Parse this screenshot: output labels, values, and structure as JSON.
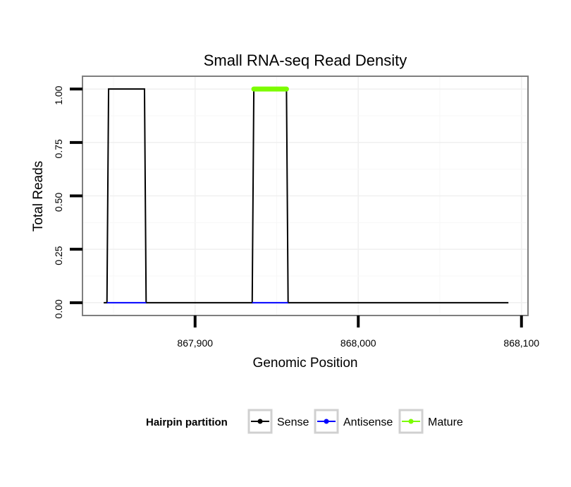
{
  "chart_data": {
    "type": "line",
    "title": "Small RNA-seq Read Density",
    "xlabel": "Genomic Position",
    "ylabel": "Total Reads",
    "xlim": [
      867831,
      868104
    ],
    "ylim": [
      -0.06,
      1.06
    ],
    "x_ticks": [
      {
        "value": 867900,
        "label": "867,900"
      },
      {
        "value": 868000,
        "label": "868,000"
      },
      {
        "value": 868100,
        "label": "868,100"
      }
    ],
    "y_ticks": [
      {
        "value": 0,
        "label": "0.00"
      },
      {
        "value": 0.25,
        "label": "0.25"
      },
      {
        "value": 0.5,
        "label": "0.50"
      },
      {
        "value": 0.75,
        "label": "0.75"
      },
      {
        "value": 1,
        "label": "1.00"
      }
    ],
    "grid": true,
    "legend": {
      "title": "Hairpin partition",
      "position": "bottom",
      "entries": [
        "Sense",
        "Antisense",
        "Mature"
      ]
    },
    "series": [
      {
        "name": "Sense",
        "color": "#000000",
        "points": [
          [
            867844,
            0
          ],
          [
            867846,
            0
          ],
          [
            867847,
            1
          ],
          [
            867869,
            1
          ],
          [
            867870,
            0
          ],
          [
            867935,
            0
          ],
          [
            867936,
            1
          ],
          [
            867956,
            1
          ],
          [
            867957,
            0
          ],
          [
            868092,
            0
          ]
        ]
      },
      {
        "name": "Antisense",
        "color": "#0000ff",
        "points": [
          [
            867846,
            0
          ],
          [
            867870,
            0
          ],
          [
            867935,
            0
          ],
          [
            867957,
            0
          ]
        ]
      },
      {
        "name": "Mature",
        "color": "#7cfc00",
        "points": [
          [
            867936,
            1
          ],
          [
            867956,
            1
          ]
        ]
      }
    ]
  }
}
